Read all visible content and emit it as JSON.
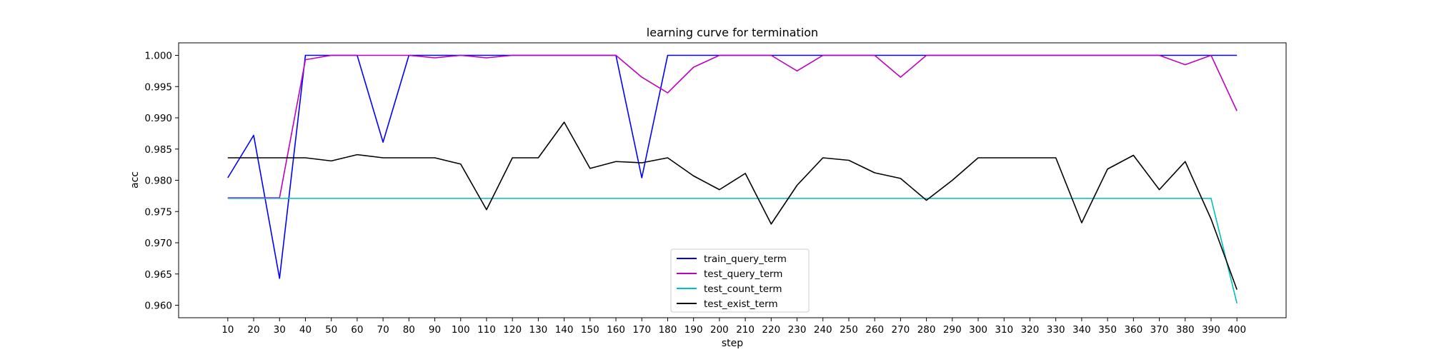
{
  "chart_data": {
    "type": "line",
    "title": "learning curve for termination",
    "xlabel": "step",
    "ylabel": "acc",
    "x": [
      10,
      20,
      30,
      40,
      50,
      60,
      70,
      80,
      90,
      100,
      110,
      120,
      130,
      140,
      150,
      160,
      170,
      180,
      190,
      200,
      210,
      220,
      230,
      240,
      250,
      260,
      270,
      280,
      290,
      300,
      310,
      320,
      330,
      340,
      350,
      360,
      370,
      380,
      390,
      400
    ],
    "xlim": [
      -9,
      419
    ],
    "ylim": [
      0.958,
      1.002
    ],
    "yticks": [
      0.96,
      0.965,
      0.97,
      0.975,
      0.98,
      0.985,
      0.99,
      0.995,
      1.0
    ],
    "ytick_labels": [
      "0.960",
      "0.965",
      "0.970",
      "0.975",
      "0.980",
      "0.985",
      "0.990",
      "0.995",
      "1.000"
    ],
    "grid": false,
    "legend_position": "lower-center",
    "series": [
      {
        "name": "train_query_term",
        "color": "#0000ff",
        "values": [
          0.9804,
          0.9872,
          0.9643,
          1.0,
          1.0,
          1.0,
          0.9861,
          1.0,
          1.0,
          1.0,
          1.0,
          1.0,
          1.0,
          1.0,
          1.0,
          1.0,
          0.9804,
          1.0,
          1.0,
          1.0,
          1.0,
          1.0,
          1.0,
          1.0,
          1.0,
          1.0,
          1.0,
          1.0,
          1.0,
          1.0,
          1.0,
          1.0,
          1.0,
          1.0,
          1.0,
          1.0,
          1.0,
          1.0,
          1.0,
          1.0
        ]
      },
      {
        "name": "test_query_term",
        "color": "#bf00bf",
        "values": [
          0.9772,
          0.9772,
          0.9772,
          0.9993,
          1.0,
          1.0,
          1.0,
          1.0,
          0.9996,
          1.0,
          0.9996,
          1.0,
          1.0,
          1.0,
          1.0,
          1.0,
          0.9965,
          0.994,
          0.9981,
          1.0,
          1.0,
          1.0,
          0.9975,
          1.0,
          1.0,
          1.0,
          0.9965,
          1.0,
          1.0,
          1.0,
          1.0,
          1.0,
          1.0,
          1.0,
          1.0,
          1.0,
          1.0,
          0.9985,
          1.0,
          0.9911
        ]
      },
      {
        "name": "test_count_term",
        "color": "#00bfbf",
        "values": [
          0.9771,
          0.9771,
          0.9771,
          0.9771,
          0.9771,
          0.9771,
          0.9771,
          0.9771,
          0.9771,
          0.9771,
          0.9771,
          0.9771,
          0.9771,
          0.9771,
          0.9771,
          0.9771,
          0.9771,
          0.9771,
          0.9771,
          0.9771,
          0.9771,
          0.9771,
          0.9771,
          0.9771,
          0.9771,
          0.9771,
          0.9771,
          0.9771,
          0.9771,
          0.9771,
          0.9771,
          0.9771,
          0.9771,
          0.9771,
          0.9771,
          0.9771,
          0.9771,
          0.9771,
          0.9771,
          0.9603
        ]
      },
      {
        "name": "test_exist_term",
        "color": "#000000",
        "values": [
          0.9836,
          0.9836,
          0.9836,
          0.9836,
          0.9831,
          0.9841,
          0.9836,
          0.9836,
          0.9836,
          0.9826,
          0.9753,
          0.9836,
          0.9836,
          0.9893,
          0.9819,
          0.983,
          0.9828,
          0.9836,
          0.9807,
          0.9785,
          0.9811,
          0.973,
          0.9792,
          0.9836,
          0.9832,
          0.9812,
          0.9803,
          0.9768,
          0.98,
          0.9836,
          0.9836,
          0.9836,
          0.9836,
          0.9732,
          0.9818,
          0.984,
          0.9785,
          0.983,
          0.9738,
          0.9625
        ]
      }
    ]
  }
}
